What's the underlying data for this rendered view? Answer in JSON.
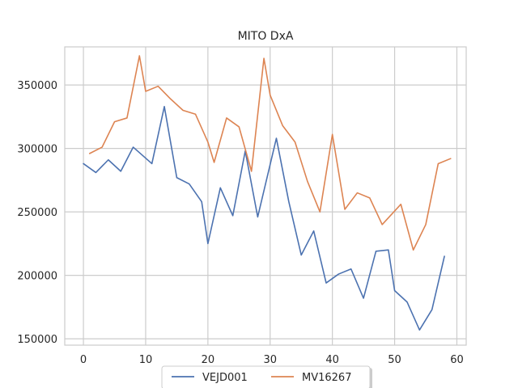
{
  "chart_data": {
    "type": "line",
    "title": "MITO DxA",
    "xlabel": "",
    "ylabel": "",
    "xlim": [
      -3,
      61.5
    ],
    "ylim": [
      145000,
      380000
    ],
    "xticks": [
      0,
      10,
      20,
      30,
      40,
      50,
      60
    ],
    "yticks": [
      150000,
      200000,
      250000,
      300000,
      350000
    ],
    "grid": true,
    "legend_position": "bottom-center",
    "series": [
      {
        "name": "VEJD001",
        "color": "#4c72b0",
        "x": [
          0,
          2,
          4,
          6,
          8,
          11,
          13,
          15,
          17,
          19,
          20,
          22,
          24,
          26,
          28,
          31,
          33,
          35,
          37,
          39,
          41,
          43,
          45,
          47,
          49,
          50,
          52,
          54,
          56,
          58
        ],
        "y": [
          288000,
          281000,
          291000,
          282000,
          301000,
          288000,
          333000,
          277000,
          272000,
          258000,
          225000,
          269000,
          247000,
          298000,
          246000,
          308000,
          258000,
          216000,
          235000,
          194000,
          201000,
          205000,
          182000,
          219000,
          220000,
          188000,
          179000,
          157000,
          173000,
          215000
        ]
      },
      {
        "name": "MV16267",
        "color": "#dd8452",
        "x": [
          1,
          3,
          5,
          7,
          9,
          10,
          12,
          14,
          16,
          18,
          20,
          21,
          23,
          25,
          27,
          29,
          30,
          32,
          34,
          36,
          38,
          40,
          42,
          44,
          46,
          48,
          51,
          53,
          55,
          57,
          59
        ],
        "y": [
          296000,
          301000,
          321000,
          324000,
          373000,
          345000,
          349000,
          339000,
          330000,
          327000,
          305000,
          289000,
          324000,
          317000,
          282000,
          371000,
          342000,
          318000,
          305000,
          274000,
          250000,
          311000,
          252000,
          265000,
          261000,
          240000,
          256000,
          220000,
          240000,
          288000,
          292000
        ]
      }
    ]
  }
}
